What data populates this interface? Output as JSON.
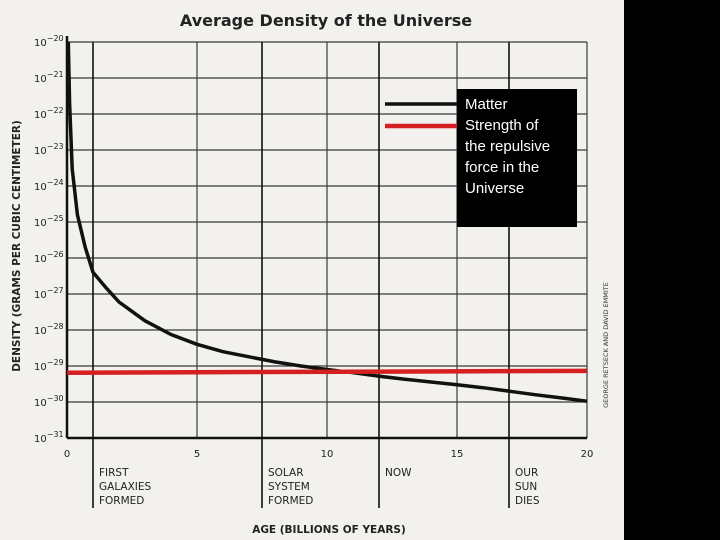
{
  "chart_data": {
    "type": "line",
    "title": "Average Density of the Universe",
    "xlabel": "AGE (BILLIONS OF YEARS)",
    "ylabel": "DENSITY (GRAMS PER CUBIC CENTIMETER)",
    "xlim": [
      0,
      20
    ],
    "x_ticks": [
      "0",
      "5",
      "10",
      "15",
      "20"
    ],
    "y_scale": "log",
    "ylim": [
      1e-31,
      1e-20
    ],
    "y_ticks": [
      {
        "base": "10",
        "exp": "−20"
      },
      {
        "base": "10",
        "exp": "−21"
      },
      {
        "base": "10",
        "exp": "−22"
      },
      {
        "base": "10",
        "exp": "−23"
      },
      {
        "base": "10",
        "exp": "−24"
      },
      {
        "base": "10",
        "exp": "−25"
      },
      {
        "base": "10",
        "exp": "−26"
      },
      {
        "base": "10",
        "exp": "−27"
      },
      {
        "base": "10",
        "exp": "−28"
      },
      {
        "base": "10",
        "exp": "−29"
      },
      {
        "base": "10",
        "exp": "−30"
      },
      {
        "base": "10",
        "exp": "−31"
      }
    ],
    "grid": true,
    "series": [
      {
        "name": "Matter",
        "color": "#111111",
        "points": [
          [
            0.05,
            1e-20
          ],
          [
            0.1,
            2e-22
          ],
          [
            0.2,
            3e-24
          ],
          [
            0.4,
            1.6e-25
          ],
          [
            0.7,
            2e-26
          ],
          [
            1,
            4e-27
          ],
          [
            1.5,
            1.5e-27
          ],
          [
            2,
            6e-28
          ],
          [
            3,
            1.8e-28
          ],
          [
            4,
            7.5e-29
          ],
          [
            5,
            4e-29
          ],
          [
            6,
            2.5e-29
          ],
          [
            7,
            1.8e-29
          ],
          [
            8,
            1.3e-29
          ],
          [
            9,
            1e-29
          ],
          [
            10,
            8e-30
          ],
          [
            11,
            6.5e-30
          ],
          [
            12,
            5.2e-30
          ],
          [
            13,
            4.3e-30
          ],
          [
            14,
            3.6e-30
          ],
          [
            15,
            3e-30
          ],
          [
            16,
            2.5e-30
          ],
          [
            17,
            2e-30
          ],
          [
            18,
            1.6e-30
          ],
          [
            19,
            1.3e-30
          ],
          [
            20,
            1.05e-30
          ]
        ]
      },
      {
        "name": "Strength of the repulsive force in the Universe",
        "color": "#d42020",
        "points": [
          [
            0,
            6.5e-30
          ],
          [
            20,
            7.3e-30
          ]
        ]
      }
    ],
    "annotations": [
      {
        "x": 1,
        "lines": [
          "FIRST",
          "GALAXIES",
          "FORMED"
        ]
      },
      {
        "x": 7.5,
        "lines": [
          "SOLAR",
          "SYSTEM",
          "FORMED"
        ]
      },
      {
        "x": 12,
        "lines": [
          "NOW"
        ]
      },
      {
        "x": 17,
        "lines": [
          "OUR",
          "SUN",
          "DIES"
        ]
      }
    ],
    "legend": {
      "placement": "top-right",
      "labels": [
        "Matter",
        "Strength of",
        "the repulsive",
        "force in the",
        "Universe"
      ]
    },
    "credit": "GEORGE RETSECK AND DAVID EMMITE"
  }
}
